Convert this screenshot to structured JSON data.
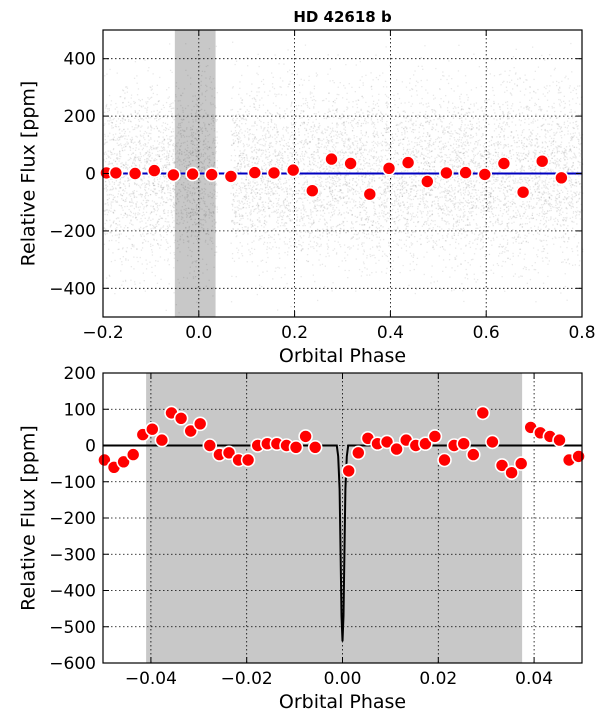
{
  "chart_data": [
    {
      "type": "scatter",
      "title": "HD 42618 b",
      "xlabel": "Orbital Phase",
      "ylabel": "Relative Flux [ppm]",
      "xlim": [
        -0.2,
        0.8
      ],
      "ylim": [
        -500,
        500
      ],
      "x_ticks": [
        -0.2,
        0.0,
        0.2,
        0.4,
        0.6,
        0.8
      ],
      "x_tick_labels": [
        "−0.2",
        "0.0",
        "0.2",
        "0.4",
        "0.6",
        "0.8"
      ],
      "y_ticks": [
        -400,
        -200,
        0,
        200,
        400
      ],
      "y_tick_labels": [
        "−400",
        "−200",
        "0",
        "200",
        "400"
      ],
      "grid": true,
      "shaded_region": [
        -0.05,
        0.035
      ],
      "series": [
        {
          "role": "binned",
          "color": "#ff0000",
          "x": [
            -0.193,
            -0.173,
            -0.133,
            -0.093,
            -0.053,
            -0.013,
            0.027,
            0.067,
            0.117,
            0.157,
            0.197,
            0.237,
            0.277,
            0.317,
            0.357,
            0.397,
            0.437,
            0.477,
            0.517,
            0.557,
            0.597,
            0.637,
            0.677,
            0.717,
            0.757
          ],
          "y": [
            2,
            2,
            0,
            10,
            -5,
            -2,
            -4,
            -10,
            3,
            2,
            12,
            -60,
            50,
            35,
            -72,
            18,
            38,
            -28,
            2,
            3,
            -3,
            35,
            -65,
            43,
            -15
          ]
        },
        {
          "role": "model",
          "color": "#0000c0",
          "x": [
            -0.2,
            0.8
          ],
          "y": [
            0,
            0
          ]
        }
      ]
    },
    {
      "type": "scatter",
      "title": "",
      "xlabel": "Orbital Phase",
      "ylabel": "Relative Flux [ppm]",
      "xlim": [
        -0.05,
        0.05
      ],
      "ylim": [
        -600,
        200
      ],
      "x_ticks": [
        -0.04,
        -0.02,
        0.0,
        0.02,
        0.04
      ],
      "x_tick_labels": [
        "−0.04",
        "−0.02",
        "0.00",
        "0.02",
        "0.04"
      ],
      "y_ticks": [
        -600,
        -500,
        -400,
        -300,
        -200,
        -100,
        0,
        100,
        200
      ],
      "y_tick_labels": [
        "−600",
        "−500",
        "−400",
        "−300",
        "−200",
        "−100",
        "0",
        "100",
        "200"
      ],
      "grid": true,
      "shaded_region": [
        -0.041,
        0.0375
      ],
      "series": [
        {
          "role": "binned",
          "color": "#ff0000",
          "x": [
            -0.0497,
            -0.0477,
            -0.0457,
            -0.0437,
            -0.0417,
            -0.0397,
            -0.0377,
            -0.0357,
            -0.0337,
            -0.0317,
            -0.0297,
            -0.0277,
            -0.0257,
            -0.0237,
            -0.0217,
            -0.0197,
            -0.0177,
            -0.0157,
            -0.0137,
            -0.0117,
            -0.0097,
            -0.0077,
            -0.0057,
            0.0013,
            0.0033,
            0.0053,
            0.0073,
            0.0093,
            0.0113,
            0.0133,
            0.0153,
            0.0173,
            0.0193,
            0.0213,
            0.0233,
            0.0253,
            0.0273,
            0.0293,
            0.0313,
            0.0333,
            0.0353,
            0.0373,
            0.0393,
            0.0413,
            0.0433,
            0.0453,
            0.0473,
            0.0493
          ],
          "y": [
            -40,
            -60,
            -45,
            -25,
            30,
            45,
            15,
            90,
            75,
            40,
            60,
            0,
            -25,
            -20,
            -40,
            -40,
            0,
            5,
            5,
            0,
            -5,
            25,
            -5,
            -70,
            -20,
            20,
            5,
            10,
            -10,
            15,
            0,
            5,
            25,
            -40,
            0,
            5,
            -25,
            90,
            10,
            -55,
            -75,
            -50,
            50,
            35,
            25,
            15,
            -40,
            -30
          ],
          "visible_from_x": -0.05
        },
        {
          "role": "model",
          "color": "#000000",
          "x": [
            -0.05,
            -0.0012,
            -0.0009,
            -0.0006,
            -0.0004,
            -0.0002,
            0.0,
            0.0002,
            0.0004,
            0.0006,
            0.0009,
            0.0012,
            0.05
          ],
          "y": [
            0,
            0,
            -30,
            -120,
            -300,
            -470,
            -540,
            -470,
            -300,
            -120,
            -30,
            0,
            0
          ]
        }
      ]
    }
  ]
}
